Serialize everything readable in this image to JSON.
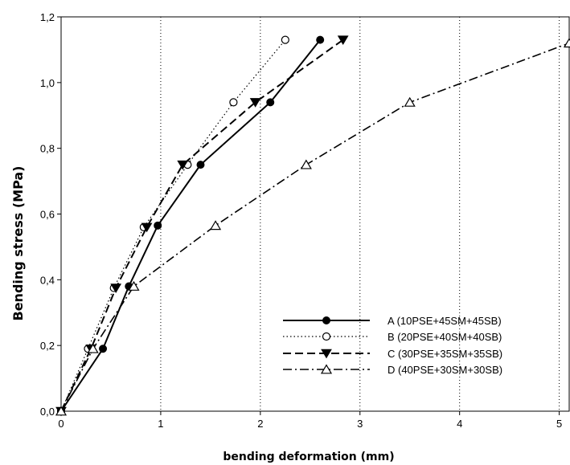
{
  "chart_data": {
    "type": "line",
    "xlabel": "bending deformation (mm)",
    "ylabel": "Bending stress  (MPa)",
    "xlim": [
      0,
      5.1
    ],
    "ylim": [
      0,
      1.2
    ],
    "x_ticks": [
      "0",
      "1",
      "2",
      "3",
      "4",
      "5"
    ],
    "y_ticks": [
      "0,0",
      "0,2",
      "0,4",
      "0,6",
      "0,8",
      "1,0",
      "1,2"
    ],
    "grid": "vertical dotted",
    "legend_position": "bottom-right",
    "series": [
      {
        "name": "A (10PSE+45SM+45SB)",
        "line_style": "solid",
        "marker": "filled-circle",
        "x": [
          0,
          0.42,
          0.68,
          0.97,
          1.4,
          2.1,
          2.6
        ],
        "y": [
          0,
          0.19,
          0.38,
          0.565,
          0.75,
          0.94,
          1.13
        ]
      },
      {
        "name": "B (20PSE+40SM+40SB)",
        "line_style": "dotted",
        "marker": "open-circle",
        "x": [
          0,
          0.27,
          0.53,
          0.83,
          1.27,
          1.73,
          2.25
        ],
        "y": [
          0,
          0.19,
          0.375,
          0.56,
          0.75,
          0.94,
          1.13
        ]
      },
      {
        "name": "C (30PSE+35SM+35SB)",
        "line_style": "dashed",
        "marker": "filled-triangle-down",
        "x": [
          0,
          0.3,
          0.55,
          0.86,
          1.22,
          1.95,
          2.83
        ],
        "y": [
          0,
          0.19,
          0.375,
          0.56,
          0.75,
          0.94,
          1.13
        ]
      },
      {
        "name": "D (40PSE+30SM+30SB)",
        "line_style": "dash-dot",
        "marker": "open-triangle-up",
        "x": [
          0,
          0.32,
          0.73,
          1.55,
          2.46,
          3.5,
          5.1
        ],
        "y": [
          0,
          0.19,
          0.38,
          0.565,
          0.75,
          0.94,
          1.12
        ]
      }
    ]
  }
}
